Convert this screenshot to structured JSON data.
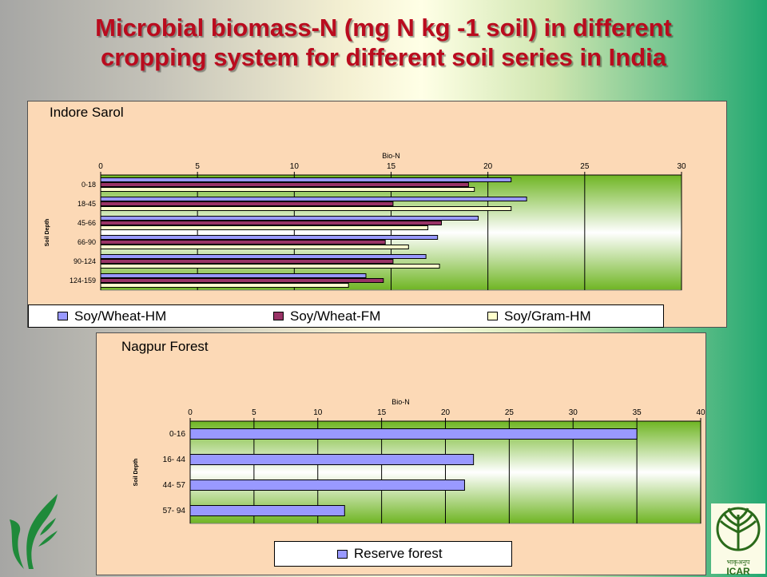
{
  "slide": {
    "title_line1": "Microbial biomass-N (mg N kg -1 soil) in different",
    "title_line2": "cropping system for different soil series in India"
  },
  "colors": {
    "soy_wheat_hm": "#9999ff",
    "soy_wheat_fm": "#993366",
    "soy_gram_hm": "#ffffcc",
    "reserve_forest": "#9999ff",
    "panel_bg": "#fcd9b6",
    "title_red": "#ba0b1e"
  },
  "logos": {
    "left_icon": "wheat-leaf-logo-icon",
    "right_icon": "icar-emblem-icon",
    "right_text": "ICAR",
    "right_script": "भाकृअनुप"
  },
  "chart_data": [
    {
      "type": "bar",
      "orientation": "horizontal",
      "title": "Indore Sarol",
      "xlabel": "Bio-N",
      "ylabel": "Soil Depth",
      "xlim": [
        0,
        30
      ],
      "xticks": [
        0,
        5,
        10,
        15,
        20,
        25,
        30
      ],
      "categories": [
        "0-18",
        "18-45",
        "45-66",
        "66-90",
        "90-124",
        "124-159"
      ],
      "series": [
        {
          "name": "Soy/Wheat-HM",
          "values": [
            21.2,
            22.0,
            19.5,
            17.4,
            16.8,
            13.7
          ]
        },
        {
          "name": "Soy/Wheat-FM",
          "values": [
            19.0,
            15.1,
            17.6,
            14.7,
            15.1,
            14.6
          ]
        },
        {
          "name": "Soy/Gram-HM",
          "values": [
            19.3,
            21.2,
            16.9,
            15.9,
            17.5,
            12.8
          ]
        }
      ],
      "grid": true,
      "legend_position": "bottom"
    },
    {
      "type": "bar",
      "orientation": "horizontal",
      "title": "Nagpur Forest",
      "xlabel": "Bio-N",
      "ylabel": "Soil Depth",
      "xlim": [
        0,
        40
      ],
      "xticks": [
        0,
        5,
        10,
        15,
        20,
        25,
        30,
        35,
        40
      ],
      "categories": [
        "0-16",
        "16- 44",
        "44- 57",
        "57- 94"
      ],
      "series": [
        {
          "name": "Reserve forest",
          "values": [
            35.0,
            22.2,
            21.5,
            12.1
          ]
        }
      ],
      "grid": true,
      "legend_position": "bottom"
    }
  ]
}
